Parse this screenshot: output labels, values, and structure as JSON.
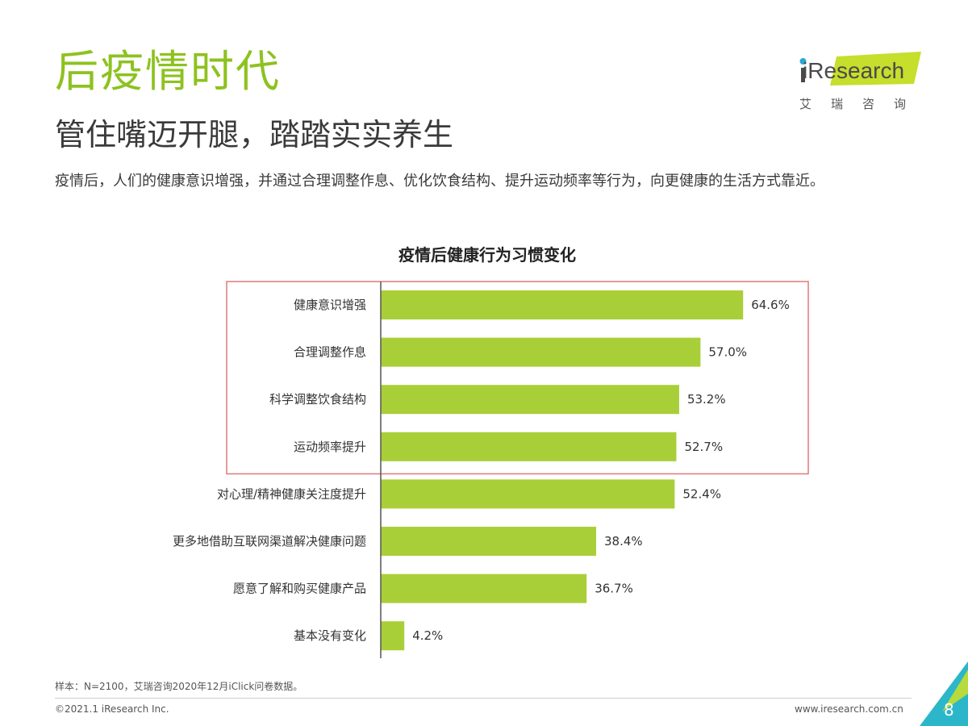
{
  "header": {
    "title": "后疫情时代",
    "subtitle": "管住嘴迈开腿，踏踏实实养生",
    "description": "疫情后，人们的健康意识增强，并通过合理调整作息、优化饮食结构、提升运动频率等行为，向更健康的生活方式靠近。"
  },
  "logo": {
    "word": "iResearch",
    "cn": "艾瑞咨询"
  },
  "colors": {
    "accent": "#8dc21f",
    "bar": "#a9cf38",
    "highlight_box": "#e0787a",
    "corner": "#2bb7c9"
  },
  "chart_data": {
    "type": "bar",
    "orientation": "horizontal",
    "title": "疫情后健康行为习惯变化",
    "categories": [
      "健康意识增强",
      "合理调整作息",
      "科学调整饮食结构",
      "运动频率提升",
      "对心理/精神健康关注度提升",
      "更多地借助互联网渠道解决健康问题",
      "愿意了解和购买健康产品",
      "基本没有变化"
    ],
    "values": [
      64.6,
      57.0,
      53.2,
      52.7,
      52.4,
      38.4,
      36.7,
      4.2
    ],
    "value_labels": [
      "64.6%",
      "57.0%",
      "53.2%",
      "52.7%",
      "52.4%",
      "38.4%",
      "36.7%",
      "4.2%"
    ],
    "highlighted_categories": 4,
    "xlim": [
      0,
      65
    ]
  },
  "footer": {
    "source": "样本：N=2100，艾瑞咨询2020年12月iClick问卷数据。",
    "copyright": "©2021.1 iResearch Inc.",
    "website": "www.iresearch.com.cn",
    "page_number": "8"
  }
}
